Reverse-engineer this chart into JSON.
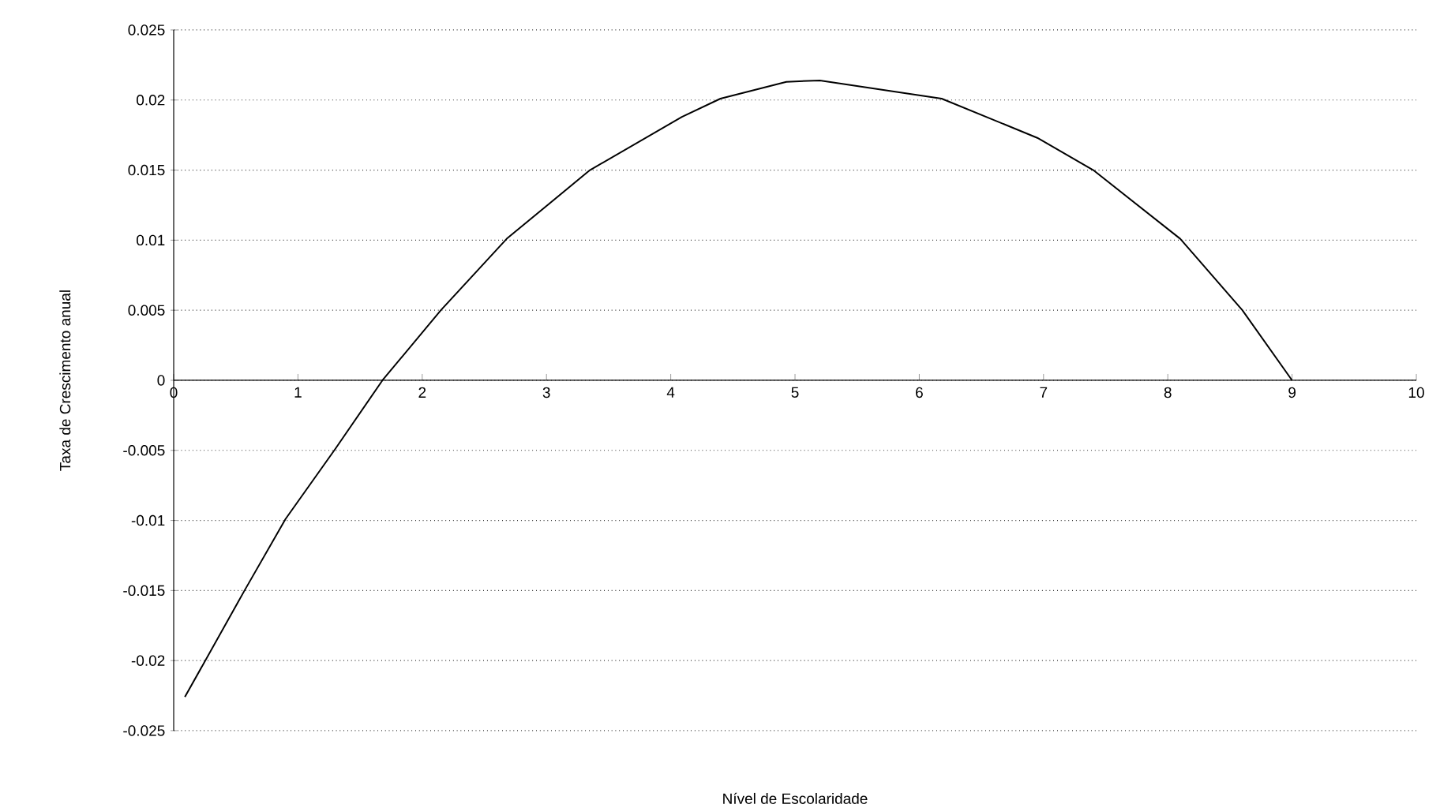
{
  "chart_data": {
    "type": "line",
    "xlabel": "Nível de Escolaridade",
    "ylabel": "Taxa de Crescimento anual",
    "x": [
      0.09,
      0.57,
      0.9,
      1.3,
      1.68,
      2.15,
      2.68,
      3.35,
      4.09,
      4.4,
      4.93,
      5.2,
      6.18,
      6.95,
      7.4,
      8.1,
      8.6,
      9.0
    ],
    "values": [
      -0.0226,
      -0.015,
      -0.0099,
      -0.0049,
      0.0,
      0.005,
      0.0101,
      0.015,
      0.0188,
      0.0201,
      0.0213,
      0.0214,
      0.0201,
      0.0173,
      0.015,
      0.0101,
      0.005,
      0.0
    ],
    "color": "#000000",
    "xlim": [
      0,
      10
    ],
    "ylim": [
      -0.025,
      0.025
    ],
    "xticks": [
      0,
      1,
      2,
      3,
      4,
      5,
      6,
      7,
      8,
      9,
      10
    ],
    "yticks": [
      -0.025,
      -0.02,
      -0.015,
      -0.01,
      -0.005,
      0,
      0.005,
      0.01,
      0.015,
      0.02,
      0.025
    ],
    "grid": "y"
  }
}
